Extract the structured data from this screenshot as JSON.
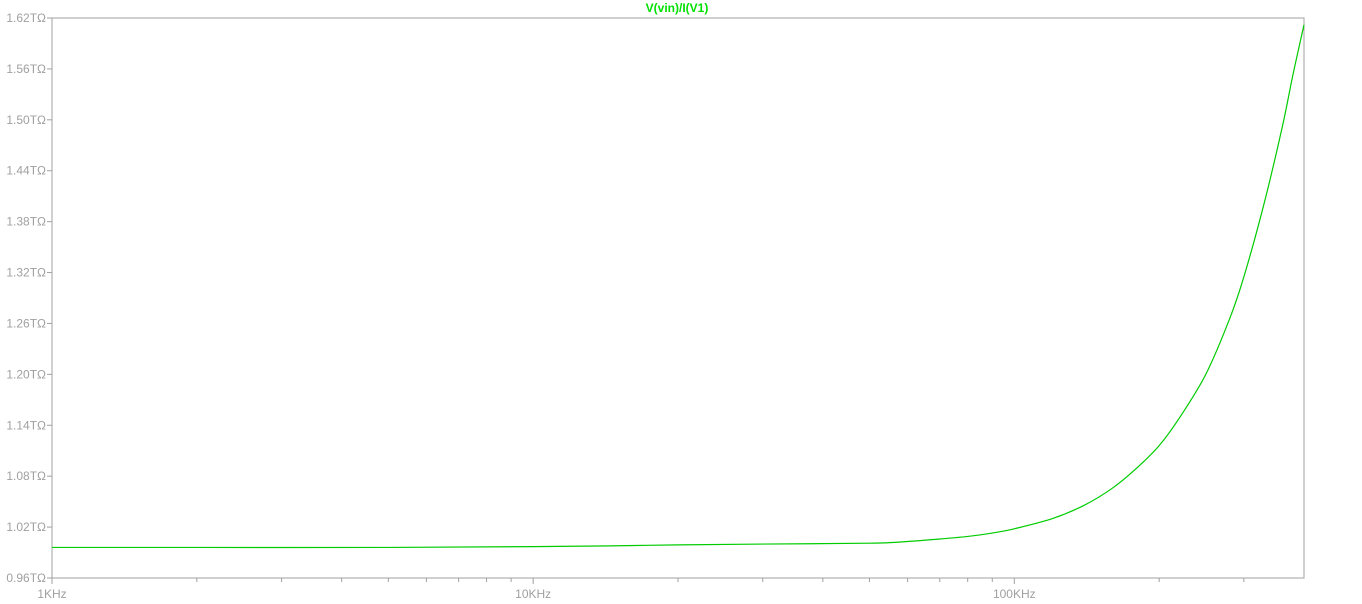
{
  "chart_data": {
    "type": "line",
    "title": "V(vin)/I(V1)",
    "title_color": "#00e000",
    "series_color": "#00cc00",
    "axis_color": "#a0a0a0",
    "x_scale": "log",
    "y_scale": "linear",
    "grid": false,
    "xlabel": "",
    "ylabel": "",
    "xlim": [
      1000,
      400000
    ],
    "ylim": [
      0.96,
      1.62
    ],
    "x_ticks": [
      {
        "value": 1000,
        "label": "1KHz"
      },
      {
        "value": 10000,
        "label": "10KHz"
      },
      {
        "value": 100000,
        "label": "100KHz"
      }
    ],
    "y_ticks": [
      {
        "value": 0.96,
        "label": "0.96TΩ"
      },
      {
        "value": 1.02,
        "label": "1.02TΩ"
      },
      {
        "value": 1.08,
        "label": "1.08TΩ"
      },
      {
        "value": 1.14,
        "label": "1.14TΩ"
      },
      {
        "value": 1.2,
        "label": "1.20TΩ"
      },
      {
        "value": 1.26,
        "label": "1.26TΩ"
      },
      {
        "value": 1.32,
        "label": "1.32TΩ"
      },
      {
        "value": 1.38,
        "label": "1.38TΩ"
      },
      {
        "value": 1.44,
        "label": "1.44TΩ"
      },
      {
        "value": 1.5,
        "label": "1.50TΩ"
      },
      {
        "value": 1.56,
        "label": "1.56TΩ"
      },
      {
        "value": 1.62,
        "label": "1.62TΩ"
      }
    ],
    "series": [
      {
        "name": "V(vin)/I(V1)",
        "x": [
          1000,
          2000,
          5000,
          10000,
          15000,
          20000,
          30000,
          50000,
          60000,
          70000,
          80000,
          90000,
          100000,
          120000,
          140000,
          160000,
          180000,
          200000,
          220000,
          250000,
          280000,
          300000,
          330000,
          360000,
          380000,
          400000
        ],
        "y": [
          0.996,
          0.996,
          0.996,
          0.997,
          0.998,
          0.999,
          1.0,
          1.001,
          1.003,
          1.006,
          1.009,
          1.013,
          1.018,
          1.03,
          1.046,
          1.066,
          1.09,
          1.116,
          1.148,
          1.2,
          1.265,
          1.315,
          1.4,
          1.49,
          1.555,
          1.612
        ]
      }
    ]
  }
}
